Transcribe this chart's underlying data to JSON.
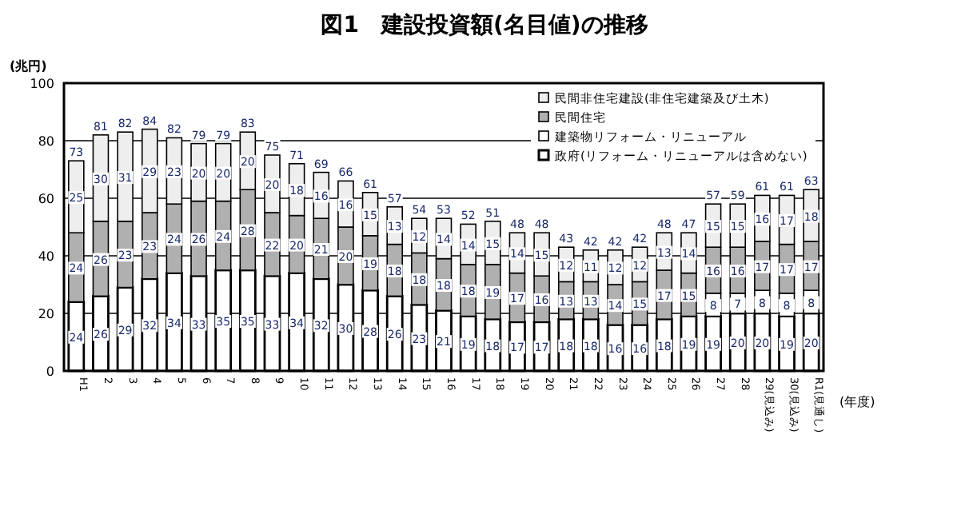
{
  "chart_data": {
    "type": "bar",
    "stacked": true,
    "title": "図1　建設投資額(名目値)の推移",
    "ylabel": "(兆円)",
    "xlabel": "(年度)",
    "categories": [
      "H1",
      "2",
      "3",
      "4",
      "5",
      "6",
      "7",
      "8",
      "9",
      "10",
      "11",
      "12",
      "13",
      "14",
      "15",
      "16",
      "17",
      "18",
      "19",
      "20",
      "21",
      "22",
      "23",
      "24",
      "25",
      "26",
      "27",
      "28",
      "29(見込み)",
      "30(見込み)",
      "R1(見通し)"
    ],
    "series": [
      {
        "name": "政府(リフォーム・リニューアルは含めない)",
        "color": "#ffffff",
        "values": [
          24,
          26,
          29,
          32,
          34,
          33,
          35,
          35,
          33,
          34,
          32,
          30,
          28,
          26,
          23,
          21,
          19,
          18,
          17,
          17,
          18,
          18,
          16,
          16,
          18,
          19,
          19,
          20,
          20,
          19,
          20
        ]
      },
      {
        "name": "建築物リフォーム・リニューアル",
        "color": "#ffffff",
        "values": [
          null,
          null,
          null,
          null,
          null,
          null,
          null,
          null,
          null,
          null,
          null,
          null,
          null,
          null,
          null,
          null,
          null,
          null,
          null,
          null,
          null,
          null,
          null,
          null,
          null,
          null,
          8,
          7,
          8,
          8,
          8
        ]
      },
      {
        "name": "民間住宅",
        "color": "#b0b0b0",
        "values": [
          24,
          26,
          23,
          23,
          24,
          26,
          24,
          28,
          22,
          20,
          21,
          20,
          19,
          18,
          18,
          18,
          18,
          19,
          17,
          16,
          13,
          13,
          14,
          15,
          17,
          15,
          16,
          16,
          17,
          17,
          17
        ]
      },
      {
        "name": "民間非住宅建設(非住宅建築及び土木)",
        "color": "#eeeeee",
        "values": [
          25,
          30,
          31,
          29,
          23,
          20,
          20,
          20,
          20,
          18,
          16,
          16,
          15,
          13,
          12,
          14,
          14,
          15,
          14,
          15,
          12,
          11,
          12,
          12,
          13,
          14,
          15,
          15,
          16,
          17,
          18
        ]
      }
    ],
    "totals": [
      "73",
      "81",
      "82",
      "84",
      "82",
      "79",
      "79",
      "83",
      "75",
      "71",
      "69",
      "66",
      "61",
      "57",
      "54",
      "53",
      "52",
      "51",
      "48",
      "48",
      "43",
      "42",
      "42",
      "42",
      "48",
      "47",
      "57",
      "59",
      "61",
      "61",
      "63"
    ],
    "data_labels": true,
    "ylim": [
      0,
      100
    ],
    "yticks": [
      0,
      20,
      40,
      60,
      80,
      100
    ],
    "grid": "y",
    "legend": "top right"
  }
}
